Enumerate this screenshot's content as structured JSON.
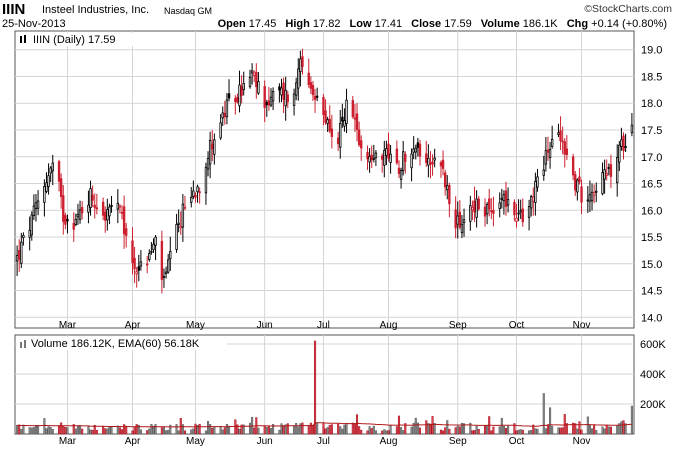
{
  "header": {
    "ticker": "IIIN",
    "company": "Insteel Industries, Inc.",
    "exchange": "Nasdaq GM",
    "date": "25-Nov-2013",
    "brand": "©StockCharts.com",
    "open_label": "Open",
    "open_value": "17.45",
    "high_label": "High",
    "high_value": "17.82",
    "low_label": "Low",
    "low_value": "17.41",
    "close_label": "Close",
    "close_value": "17.59",
    "volume_label": "Volume",
    "volume_value": "186.1K",
    "chg_label": "Chg",
    "chg_value": "+0.14 (+0.80%)"
  },
  "price_panel": {
    "legend": "IIIN (Daily) 17.59",
    "ylim": [
      13.8,
      19.35
    ],
    "yticks": [
      "19.0",
      "18.5",
      "18.0",
      "17.5",
      "17.0",
      "16.5",
      "16.0",
      "15.5",
      "15.0",
      "14.5",
      "14.0"
    ]
  },
  "volume_panel": {
    "legend": "Volume 186.12K, EMA(60) 56.18K",
    "ylim": [
      0,
      660
    ],
    "yticks": [
      "600K",
      "400K",
      "200K"
    ]
  },
  "months": [
    "Mar",
    "Apr",
    "May",
    "Jun",
    "Jul",
    "Aug",
    "Sep",
    "Oct",
    "Nov"
  ],
  "colors": {
    "up": "#000000",
    "down": "#cc1f2f",
    "vol_up": "#8a8a8a",
    "vol_down": "#e0454f",
    "ema": "#b01818",
    "grid": "#d4d4d4"
  },
  "chart_data": {
    "type": "candlestick",
    "title": "IIIN (Daily) 17.59",
    "anchors": [
      {
        "date": "2013-02-05",
        "close": 15.1
      },
      {
        "date": "2013-02-12",
        "close": 15.8
      },
      {
        "date": "2013-02-19",
        "close": 16.6
      },
      {
        "date": "2013-02-23",
        "close": 16.9
      },
      {
        "date": "2013-02-27",
        "close": 15.9
      },
      {
        "date": "2013-03-05",
        "close": 15.8
      },
      {
        "date": "2013-03-12",
        "close": 16.3
      },
      {
        "date": "2013-03-19",
        "close": 15.9
      },
      {
        "date": "2013-03-25",
        "close": 16.1
      },
      {
        "date": "2013-04-01",
        "close": 15.0
      },
      {
        "date": "2013-04-06",
        "close": 14.9
      },
      {
        "date": "2013-04-12",
        "close": 15.4
      },
      {
        "date": "2013-04-16",
        "close": 14.6
      },
      {
        "date": "2013-04-20",
        "close": 15.3
      },
      {
        "date": "2013-04-26",
        "close": 16.1
      },
      {
        "date": "2013-05-03",
        "close": 16.5
      },
      {
        "date": "2013-05-09",
        "close": 17.3
      },
      {
        "date": "2013-05-16",
        "close": 17.9
      },
      {
        "date": "2013-05-22",
        "close": 18.2
      },
      {
        "date": "2013-05-28",
        "close": 18.5
      },
      {
        "date": "2013-06-04",
        "close": 18.0
      },
      {
        "date": "2013-06-10",
        "close": 18.2
      },
      {
        "date": "2013-06-17",
        "close": 18.1
      },
      {
        "date": "2013-06-20",
        "close": 19.0
      },
      {
        "date": "2013-06-24",
        "close": 18.2
      },
      {
        "date": "2013-07-01",
        "close": 17.8
      },
      {
        "date": "2013-07-08",
        "close": 17.3
      },
      {
        "date": "2013-07-12",
        "close": 18.0
      },
      {
        "date": "2013-07-16",
        "close": 17.6
      },
      {
        "date": "2013-07-22",
        "close": 17.0
      },
      {
        "date": "2013-07-29",
        "close": 17.1
      },
      {
        "date": "2013-08-05",
        "close": 16.8
      },
      {
        "date": "2013-08-12",
        "close": 17.2
      },
      {
        "date": "2013-08-19",
        "close": 17.0
      },
      {
        "date": "2013-08-26",
        "close": 16.9
      },
      {
        "date": "2013-08-30",
        "close": 16.2
      },
      {
        "date": "2013-09-04",
        "close": 15.6
      },
      {
        "date": "2013-09-09",
        "close": 16.1
      },
      {
        "date": "2013-09-16",
        "close": 16.0
      },
      {
        "date": "2013-09-23",
        "close": 16.2
      },
      {
        "date": "2013-09-30",
        "close": 16.0
      },
      {
        "date": "2013-10-04",
        "close": 15.8
      },
      {
        "date": "2013-10-09",
        "close": 16.4
      },
      {
        "date": "2013-10-14",
        "close": 16.8
      },
      {
        "date": "2013-10-18",
        "close": 17.4
      },
      {
        "date": "2013-10-23",
        "close": 17.3
      },
      {
        "date": "2013-10-28",
        "close": 16.6
      },
      {
        "date": "2013-11-01",
        "close": 16.3
      },
      {
        "date": "2013-11-06",
        "close": 16.4
      },
      {
        "date": "2013-11-11",
        "close": 16.6
      },
      {
        "date": "2013-11-15",
        "close": 16.7
      },
      {
        "date": "2013-11-20",
        "close": 17.2
      },
      {
        "date": "2013-11-25",
        "close": 17.59
      }
    ],
    "volume_spikes": [
      {
        "date": "2013-06-27",
        "volume": 620
      },
      {
        "date": "2013-10-14",
        "volume": 270
      },
      {
        "date": "2013-10-17",
        "volume": 175
      },
      {
        "date": "2013-11-25",
        "volume": 186
      }
    ],
    "ema_volume_last": 56.18,
    "y_unit_volume": "K"
  }
}
